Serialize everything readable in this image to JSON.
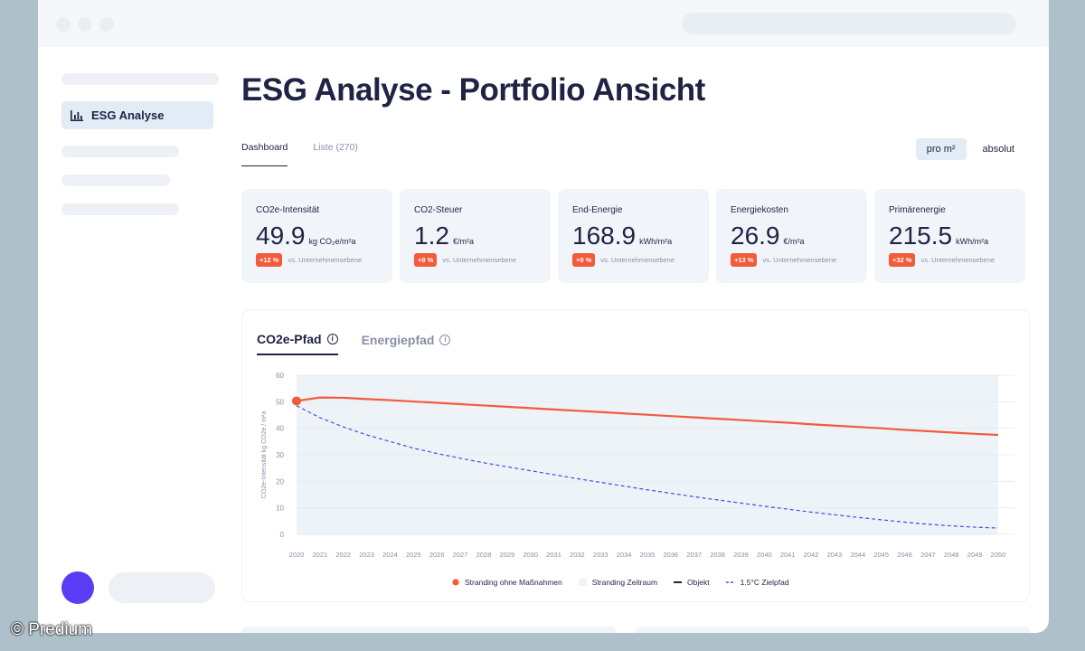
{
  "sidebar": {
    "active_item": "ESG Analyse",
    "active_icon": "bar-chart-icon"
  },
  "page": {
    "title": "ESG Analyse - Portfolio Ansicht"
  },
  "tabs": [
    {
      "label": "Dashboard",
      "active": true
    },
    {
      "label": "Liste (270)",
      "active": false
    }
  ],
  "unit_toggle": [
    {
      "label": "pro m²",
      "active": true
    },
    {
      "label": "absolut",
      "active": false
    }
  ],
  "kpis": [
    {
      "label": "CO2e-Intensität",
      "value": "49.9",
      "unit": "kg CO₂e/m²a",
      "badge": "+12 %",
      "compare": "vs. Unternehmensebene"
    },
    {
      "label": "CO2-Steuer",
      "value": "1.2",
      "unit": "€/m²a",
      "badge": "+8 %",
      "compare": "vs. Unternehmensebene"
    },
    {
      "label": "End-Energie",
      "value": "168.9",
      "unit": "kWh/m²a",
      "badge": "+9 %",
      "compare": "vs. Unternehmensebene"
    },
    {
      "label": "Energiekosten",
      "value": "26.9",
      "unit": "€/m²a",
      "badge": "+13 %",
      "compare": "vs. Unternehmensebene"
    },
    {
      "label": "Primärenergie",
      "value": "215.5",
      "unit": "kWh/m²a",
      "badge": "+32 %",
      "compare": "vs. Unternehmensebene"
    }
  ],
  "chart_tabs": [
    {
      "label": "CO2e-Pfad",
      "active": true
    },
    {
      "label": "Energiepfad",
      "active": false
    }
  ],
  "colors": {
    "accent": "#f25b3b",
    "target": "#4a4adf",
    "navy": "#1f2344",
    "badge": "#f25b3b"
  },
  "chart_data": {
    "type": "line",
    "title": "",
    "ylabel": "CO2e-Intensität kg CO2e / m²a",
    "xlabel": "",
    "ylim": [
      0,
      60
    ],
    "yticks": [
      0,
      10,
      20,
      30,
      40,
      50,
      60
    ],
    "x": [
      2020,
      2021,
      2022,
      2023,
      2024,
      2025,
      2026,
      2027,
      2028,
      2029,
      2030,
      2031,
      2032,
      2033,
      2034,
      2035,
      2036,
      2037,
      2038,
      2039,
      2040,
      2041,
      2042,
      2043,
      2044,
      2045,
      2046,
      2047,
      2048,
      2049,
      2050
    ],
    "stranding_range": [
      2020,
      2050
    ],
    "grid": true,
    "legend_position": "bottom",
    "series": [
      {
        "name": "Stranding ohne Maßnahmen",
        "style": "solid",
        "color": "#f25b3b",
        "values": [
          50.3,
          51.6,
          51.5,
          51.0,
          50.6,
          50.1,
          49.6,
          49.1,
          48.6,
          48.1,
          47.6,
          47.1,
          46.6,
          46.1,
          45.6,
          45.1,
          44.6,
          44.1,
          43.6,
          43.1,
          42.6,
          42.1,
          41.5,
          41.0,
          40.5,
          40.0,
          39.4,
          38.9,
          38.4,
          37.9,
          37.5
        ]
      },
      {
        "name": "1.5°C Zielpfad",
        "style": "dashed",
        "color": "#4a4adf",
        "values": [
          48.5,
          44.0,
          40.5,
          37.5,
          35.0,
          32.5,
          30.5,
          28.7,
          27.0,
          25.5,
          24.0,
          22.5,
          21.0,
          19.6,
          18.2,
          16.8,
          15.5,
          14.2,
          13.0,
          11.8,
          10.6,
          9.5,
          8.4,
          7.4,
          6.4,
          5.5,
          4.6,
          3.8,
          3.2,
          2.7,
          2.4
        ]
      }
    ],
    "legend": [
      {
        "name": "Stranding ohne Maßnahmen",
        "marker": "dot",
        "color": "#f25b3b"
      },
      {
        "name": "Stranding Zeitraum",
        "marker": "box",
        "color": "#eef3f7"
      },
      {
        "name": "Objekt",
        "marker": "line",
        "color": "#1f2344"
      },
      {
        "name": "1.5°C Zielpfad",
        "marker": "dash",
        "color": "#4a4adf"
      }
    ],
    "highlight_point": {
      "x": 2020,
      "y": 50.3
    }
  },
  "watermark": "© Predium"
}
